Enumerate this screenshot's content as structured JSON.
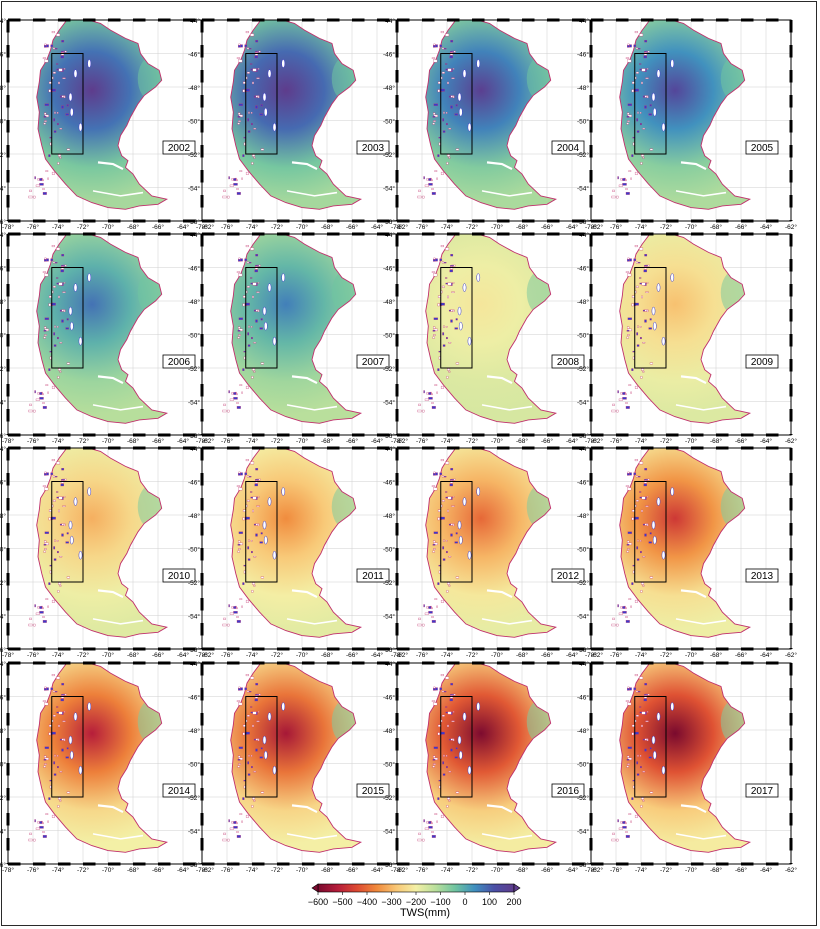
{
  "lat_ticks": [
    "-44",
    "-46",
    "-48",
    "-50",
    "-52",
    "-54",
    "-56"
  ],
  "lon_ticks_top_rows": [
    "-78",
    "-76",
    "-74",
    "-72",
    "-70",
    "-68",
    "-66",
    "-64",
    "-62"
  ],
  "lon_ticks_bottom_row": [
    [
      "-78",
      "-76",
      "-74",
      "-72",
      "-70",
      "-68",
      "-66",
      "-64",
      "-62"
    ],
    [
      "-78",
      "-76",
      "-74",
      "-72",
      "-70",
      "-68",
      "-66",
      "-64",
      "-62"
    ],
    [
      "-78",
      "-76",
      "-74",
      "-72",
      "-70",
      "-68",
      "-66",
      "-64",
      "-62"
    ],
    [
      "-78",
      "-76",
      "-74",
      "-72",
      "-70",
      "-68",
      "-66",
      "-64",
      "-62"
    ]
  ],
  "degree_symbol": "°",
  "panels": [
    {
      "year": "2002",
      "intensity": 0.5
    },
    {
      "year": "2003",
      "intensity": 0.55
    },
    {
      "year": "2004",
      "intensity": 0.4
    },
    {
      "year": "2005",
      "intensity": 0.3
    },
    {
      "year": "2006",
      "intensity": 0.05
    },
    {
      "year": "2007",
      "intensity": 0.0
    },
    {
      "year": "2008",
      "intensity": -0.15
    },
    {
      "year": "2009",
      "intensity": -0.3
    },
    {
      "year": "2010",
      "intensity": -0.35
    },
    {
      "year": "2011",
      "intensity": -0.45
    },
    {
      "year": "2012",
      "intensity": -0.55
    },
    {
      "year": "2013",
      "intensity": -0.7
    },
    {
      "year": "2014",
      "intensity": -0.8
    },
    {
      "year": "2015",
      "intensity": -0.85
    },
    {
      "year": "2016",
      "intensity": -0.97
    },
    {
      "year": "2017",
      "intensity": -1.0
    }
  ],
  "colorbar": {
    "title": "TWS(mm)",
    "tick_labels": [
      "−600",
      "−500",
      "−400",
      "−300",
      "−200",
      "−100",
      "0",
      "100",
      "200"
    ],
    "range": [
      -600,
      200
    ],
    "colors": [
      "#7a0a2e",
      "#b51d3a",
      "#dd4a32",
      "#f08a3c",
      "#f8c776",
      "#f4f0a6",
      "#b9df9c",
      "#6fc4a0",
      "#3f8fbf",
      "#4b4fa6",
      "#5e3c8c"
    ]
  }
}
